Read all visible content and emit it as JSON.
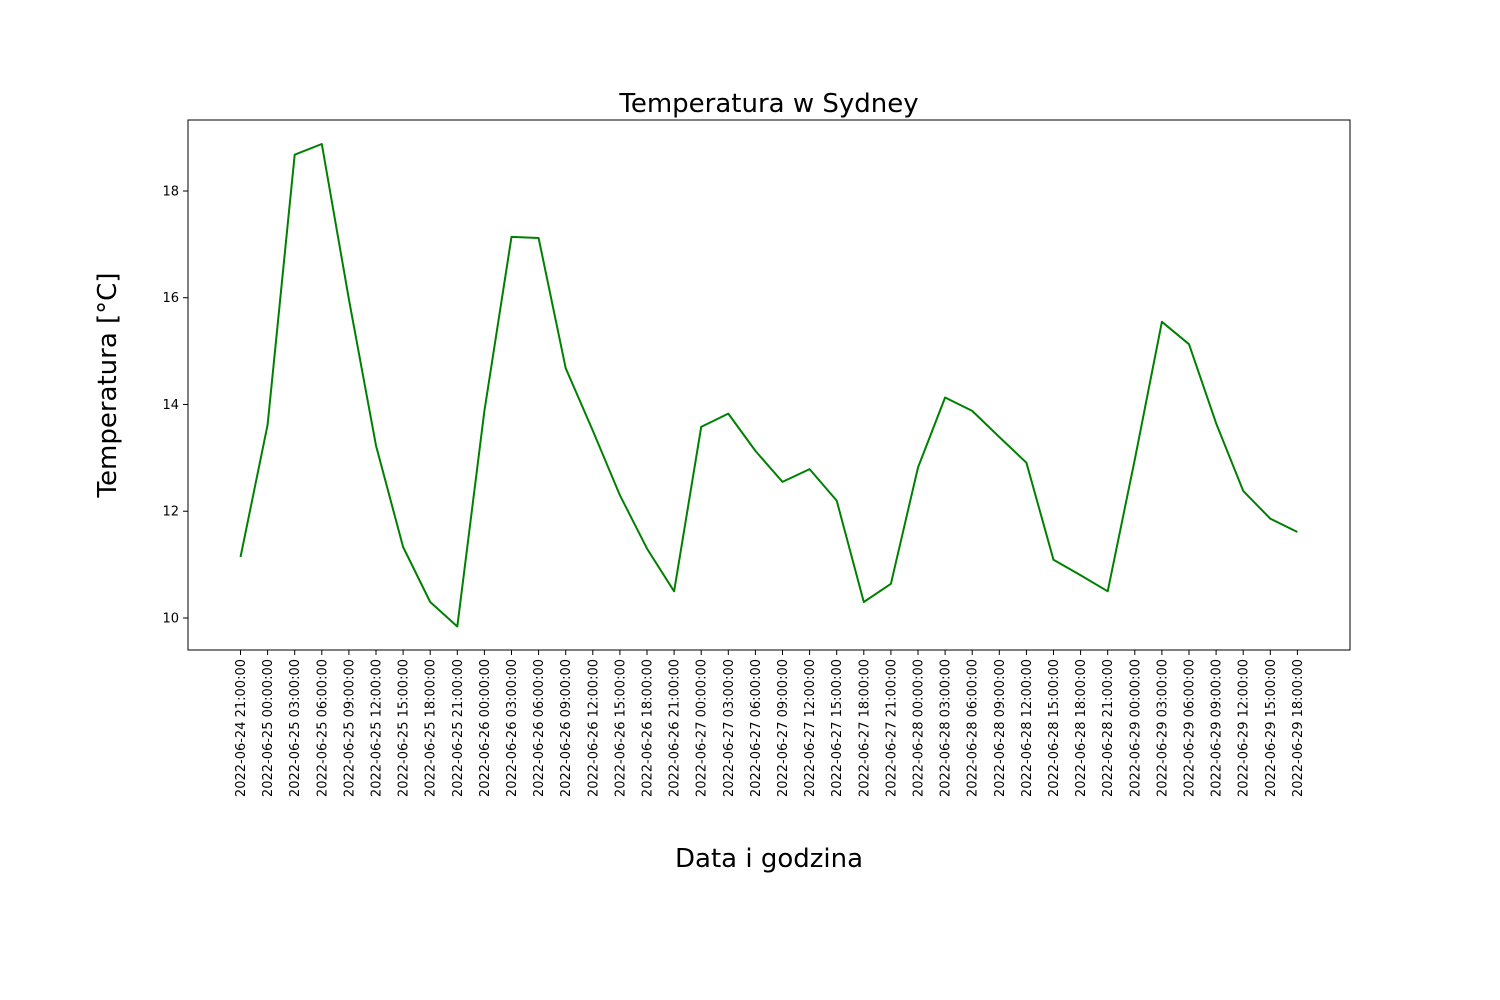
{
  "chart_data": {
    "type": "line",
    "title": "Temperatura w Sydney",
    "xlabel": "Data i godzina",
    "ylabel": "Temperatura [°C]",
    "ylim": [
      9.4,
      19.33
    ],
    "yticks": [
      10,
      12,
      14,
      16,
      18
    ],
    "grid": false,
    "color": "#008000",
    "x": [
      "2022-06-24 21:00:00",
      "2022-06-25 00:00:00",
      "2022-06-25 03:00:00",
      "2022-06-25 06:00:00",
      "2022-06-25 09:00:00",
      "2022-06-25 12:00:00",
      "2022-06-25 15:00:00",
      "2022-06-25 18:00:00",
      "2022-06-25 21:00:00",
      "2022-06-26 00:00:00",
      "2022-06-26 03:00:00",
      "2022-06-26 06:00:00",
      "2022-06-26 09:00:00",
      "2022-06-26 12:00:00",
      "2022-06-26 15:00:00",
      "2022-06-26 18:00:00",
      "2022-06-26 21:00:00",
      "2022-06-27 00:00:00",
      "2022-06-27 03:00:00",
      "2022-06-27 06:00:00",
      "2022-06-27 09:00:00",
      "2022-06-27 12:00:00",
      "2022-06-27 15:00:00",
      "2022-06-27 18:00:00",
      "2022-06-27 21:00:00",
      "2022-06-28 00:00:00",
      "2022-06-28 03:00:00",
      "2022-06-28 06:00:00",
      "2022-06-28 09:00:00",
      "2022-06-28 12:00:00",
      "2022-06-28 15:00:00",
      "2022-06-28 18:00:00",
      "2022-06-28 21:00:00",
      "2022-06-29 00:00:00",
      "2022-06-29 03:00:00",
      "2022-06-29 06:00:00",
      "2022-06-29 09:00:00",
      "2022-06-29 12:00:00",
      "2022-06-29 15:00:00",
      "2022-06-29 18:00:00"
    ],
    "values": [
      11.14,
      13.62,
      18.68,
      18.88,
      15.97,
      13.23,
      11.33,
      10.3,
      9.84,
      13.88,
      17.14,
      17.12,
      14.68,
      13.51,
      12.3,
      11.3,
      10.5,
      13.58,
      13.83,
      13.13,
      12.55,
      12.79,
      12.2,
      10.3,
      10.64,
      12.82,
      14.13,
      13.88,
      13.39,
      12.91,
      11.09,
      10.8,
      10.5,
      12.97,
      15.55,
      15.13,
      13.65,
      12.38,
      11.86,
      11.61
    ]
  }
}
